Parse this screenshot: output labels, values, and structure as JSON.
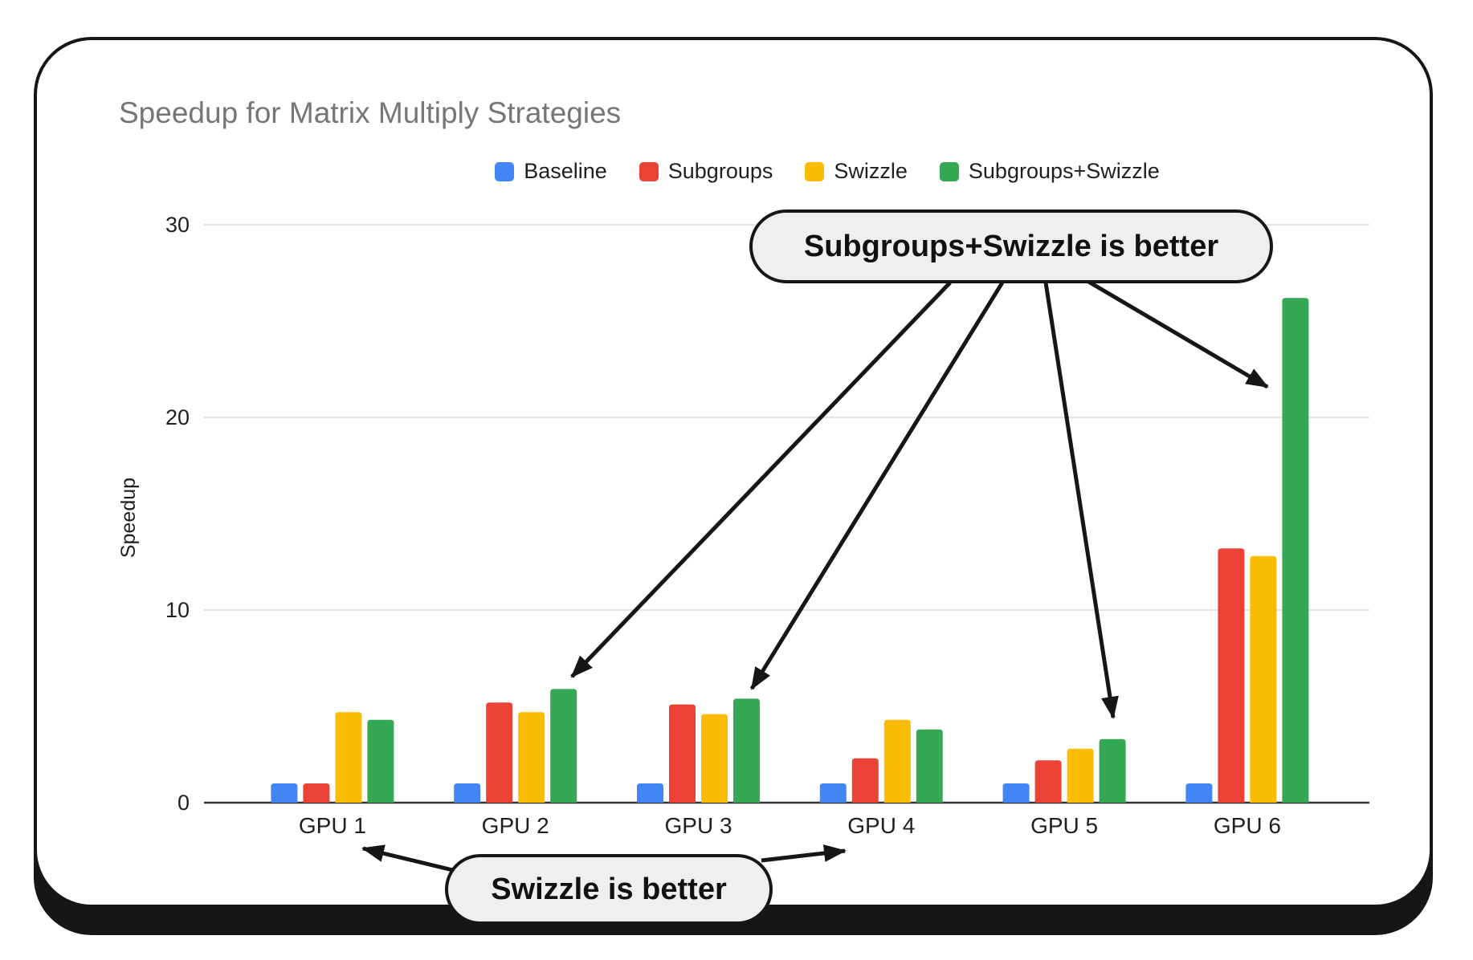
{
  "card": {
    "background": "#ffffff",
    "border_color": "#161616"
  },
  "chart_data": {
    "type": "bar",
    "title": "Speedup for Matrix Multiply Strategies",
    "ylabel": "Speedup",
    "xlabel": "",
    "categories": [
      "GPU 1",
      "GPU 2",
      "GPU 3",
      "GPU 4",
      "GPU 5",
      "GPU 6"
    ],
    "series": [
      {
        "name": "Baseline",
        "color": "#4285F4",
        "values": [
          1,
          1,
          1,
          1,
          1,
          1
        ]
      },
      {
        "name": "Subgroups",
        "color": "#EA4335",
        "values": [
          1,
          5.2,
          5.1,
          2.3,
          2.2,
          13.2
        ]
      },
      {
        "name": "Swizzle",
        "color": "#FBBC04",
        "values": [
          4.7,
          4.7,
          4.6,
          4.3,
          2.8,
          12.8
        ]
      },
      {
        "name": "Subgroups+Swizzle",
        "color": "#34A853",
        "values": [
          4.3,
          5.9,
          5.4,
          3.8,
          3.3,
          26.2
        ]
      }
    ],
    "ylim": [
      0,
      30
    ],
    "yticks": [
      0,
      10,
      20,
      30
    ],
    "grid": true,
    "legend_position": "top",
    "annotations": [
      {
        "text": "Subgroups+Swizzle is better",
        "targets": [
          "GPU 2 Subgroups+Swizzle bar",
          "GPU 3 Subgroups+Swizzle bar",
          "GPU 5 Subgroups+Swizzle bar",
          "GPU 6 Subgroups+Swizzle bar"
        ]
      },
      {
        "text": "Swizzle is better",
        "targets": [
          "GPU 1 group",
          "GPU 4 group"
        ]
      }
    ]
  }
}
